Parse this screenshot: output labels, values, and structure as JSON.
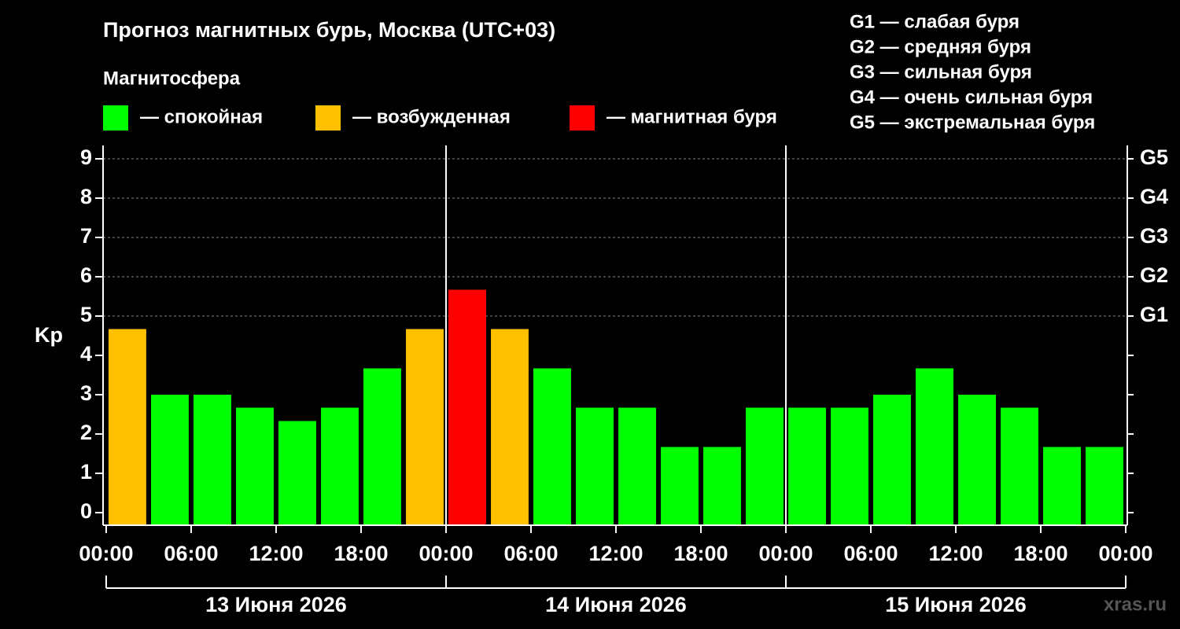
{
  "chart_data": {
    "type": "bar",
    "title": "Прогноз магнитных бурь, Москва (UTC+03)",
    "subtitle": "Магнитосфера",
    "legend": [
      {
        "label": "— спокойная",
        "color": "#00ff00"
      },
      {
        "label": "— возбужденная",
        "color": "#ffc000"
      },
      {
        "label": "— магнитная буря",
        "color": "#ff0000"
      }
    ],
    "scale_legend": [
      "G1 — слабая буря",
      "G2 — средняя буря",
      "G3 — сильная буря",
      "G4 — очень сильная буря",
      "G5 — экстремальная буря"
    ],
    "ylabel": "Kp",
    "watermark": "xras.ru",
    "x": [
      1.5,
      4.5,
      7.5,
      10.5,
      13.5,
      16.5,
      19.5,
      22.5,
      25.5,
      28.5,
      31.5,
      34.5,
      37.5,
      40.5,
      43.5,
      46.5,
      49.5,
      52.5,
      55.5,
      58.5,
      61.5,
      64.5,
      67.5,
      70.5
    ],
    "values": [
      4.67,
      3.0,
      3.0,
      2.67,
      2.33,
      2.67,
      3.67,
      4.67,
      5.67,
      4.67,
      3.67,
      2.67,
      2.67,
      1.67,
      1.67,
      2.67,
      2.67,
      2.67,
      3.0,
      3.67,
      3.0,
      2.67,
      1.67,
      1.67
    ],
    "colors": [
      "#ffc000",
      "#00ff00",
      "#00ff00",
      "#00ff00",
      "#00ff00",
      "#00ff00",
      "#00ff00",
      "#ffc000",
      "#ff0000",
      "#ffc000",
      "#00ff00",
      "#00ff00",
      "#00ff00",
      "#00ff00",
      "#00ff00",
      "#00ff00",
      "#00ff00",
      "#00ff00",
      "#00ff00",
      "#00ff00",
      "#00ff00",
      "#00ff00",
      "#00ff00",
      "#00ff00"
    ],
    "xlim": [
      -0.22,
      72.11
    ],
    "xticks": [
      {
        "value": 0,
        "label": "00:00"
      },
      {
        "value": 6,
        "label": "06:00"
      },
      {
        "value": 12,
        "label": "12:00"
      },
      {
        "value": 18,
        "label": "18:00"
      },
      {
        "value": 24,
        "label": "00:00"
      },
      {
        "value": 30,
        "label": "06:00"
      },
      {
        "value": 36,
        "label": "12:00"
      },
      {
        "value": 42,
        "label": "18:00"
      },
      {
        "value": 48,
        "label": "00:00"
      },
      {
        "value": 54,
        "label": "06:00"
      },
      {
        "value": 60,
        "label": "12:00"
      },
      {
        "value": 66,
        "label": "18:00"
      },
      {
        "value": 72,
        "label": "00:00"
      }
    ],
    "day_labels": [
      "13 Июня 2026",
      "14 Июня 2026",
      "15 Июня 2026"
    ],
    "ylim": [
      -0.32,
      9.34
    ],
    "yticks": [
      0,
      1,
      2,
      3,
      4,
      5,
      6,
      7,
      8,
      9
    ],
    "y2lim": [
      -0.32,
      9.34
    ],
    "y2ticks": [
      {
        "value": 5,
        "label": "G1"
      },
      {
        "value": 6,
        "label": "G2"
      },
      {
        "value": 7,
        "label": "G3"
      },
      {
        "value": 8,
        "label": "G4"
      },
      {
        "value": 9,
        "label": "G5"
      }
    ],
    "grid": true
  }
}
